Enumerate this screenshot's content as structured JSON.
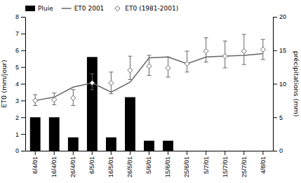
{
  "chart_data": {
    "type": "bar",
    "categories": [
      "6/4/01",
      "16/4/01",
      "26/4/01",
      "6/5/01",
      "16/5/01",
      "26/5/01",
      "5/6/01",
      "15/6/01",
      "25/6/01",
      "5/7/01",
      "15/7/01",
      "25/7/01",
      "4/8/01"
    ],
    "series": [
      {
        "name": "Pluie",
        "type": "bar",
        "color": "#000000",
        "values": [
          2.0,
          2.0,
          0.8,
          5.6,
          0.8,
          3.2,
          0.6,
          0.6,
          0.0,
          0.0,
          0.0,
          0.0,
          0.0
        ]
      },
      {
        "name": "ET0 2001",
        "type": "line",
        "color": "#666666",
        "values": [
          3.0,
          3.2,
          3.8,
          4.05,
          3.5,
          4.1,
          5.55,
          5.6,
          5.2,
          5.6,
          5.65,
          5.7,
          5.8
        ]
      },
      {
        "name": "ET0 (1981-2001)",
        "type": "scatter",
        "marker": "diamond",
        "color": "#666666",
        "values": [
          3.0,
          3.05,
          3.15,
          4.05,
          4.05,
          4.8,
          5.05,
          4.95,
          5.2,
          5.95,
          5.65,
          5.95,
          6.05
        ],
        "error_upper": [
          0.35,
          0.4,
          0.5,
          0.55,
          0.65,
          0.85,
          0.65,
          0.65,
          0.75,
          0.8,
          0.9,
          1.0,
          0.6
        ],
        "error_lower": [
          0.3,
          0.3,
          0.45,
          0.4,
          0.65,
          0.55,
          0.55,
          0.55,
          0.5,
          0.65,
          0.7,
          0.8,
          0.6
        ]
      }
    ],
    "ylabel": "ET0 (mm/jour)",
    "y2label": "précipitations (mm)",
    "ylim": [
      0,
      8
    ],
    "yticks": [
      0,
      1,
      2,
      3,
      4,
      5,
      6,
      7,
      8
    ],
    "y2lim": [
      0,
      20
    ],
    "y2ticks": [
      0,
      5,
      10,
      15,
      20
    ],
    "legend": "upper left"
  }
}
